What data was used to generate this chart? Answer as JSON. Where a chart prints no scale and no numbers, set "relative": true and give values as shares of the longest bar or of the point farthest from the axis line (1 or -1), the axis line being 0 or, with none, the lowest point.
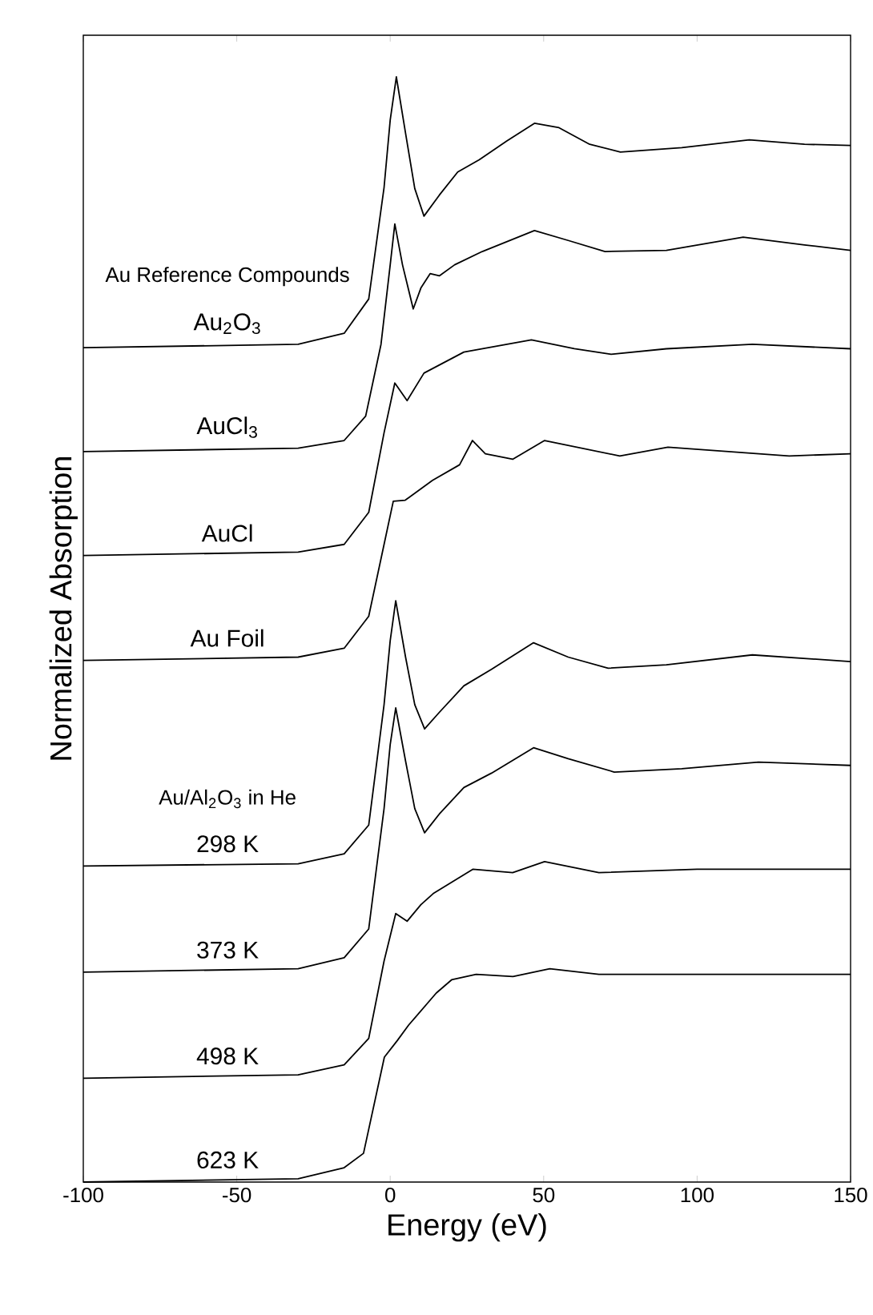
{
  "chart_data": {
    "type": "line",
    "relative": true,
    "xlabel": "Energy (eV)",
    "ylabel": "Normalized Absorption",
    "xlim": [
      -100,
      150
    ],
    "xticks": [
      -100,
      -50,
      0,
      50,
      100,
      150
    ],
    "grid": false,
    "marker": "none",
    "line_style": "solid",
    "annotations": [
      "Au Reference Compounds",
      "Au/Al$_{2}$O$_{3}$ in He"
    ],
    "series": [
      {
        "name": "Au$_{2}$O$_{3}$",
        "color": "#000000",
        "x": [
          -100,
          -30,
          -15,
          -7,
          -2,
          0,
          2,
          5,
          8,
          11,
          16,
          22,
          29,
          38,
          47,
          55,
          65,
          75,
          95,
          117,
          135,
          150
        ],
        "values": [
          0.755,
          0.758,
          0.768,
          0.799,
          0.9,
          0.961,
          1.0,
          0.949,
          0.899,
          0.874,
          0.893,
          0.914,
          0.925,
          0.942,
          0.958,
          0.954,
          0.939,
          0.932,
          0.936,
          0.943,
          0.939,
          0.938
        ]
      },
      {
        "name": "AuCl$_{3}$",
        "color": "#000000",
        "x": [
          -100,
          -30,
          -15,
          -8,
          -3,
          0,
          1.5,
          4,
          7.5,
          10,
          13,
          16,
          21,
          30,
          47,
          58,
          70,
          90,
          115,
          135,
          150
        ],
        "values": [
          0.661,
          0.664,
          0.671,
          0.693,
          0.758,
          0.83,
          0.867,
          0.83,
          0.79,
          0.809,
          0.822,
          0.82,
          0.83,
          0.842,
          0.861,
          0.852,
          0.842,
          0.843,
          0.855,
          0.848,
          0.843
        ]
      },
      {
        "name": "AuCl",
        "color": "#000000",
        "x": [
          -100,
          -30,
          -15,
          -7,
          -2,
          1.5,
          5.5,
          11,
          24,
          46,
          60,
          72,
          90,
          118,
          150
        ],
        "values": [
          0.567,
          0.57,
          0.577,
          0.606,
          0.678,
          0.723,
          0.707,
          0.732,
          0.751,
          0.762,
          0.754,
          0.749,
          0.754,
          0.758,
          0.754
        ]
      },
      {
        "name": "Au Foil",
        "color": "#000000",
        "x": [
          -100,
          -30,
          -15,
          -7,
          -2,
          1,
          4.9,
          13.8,
          22.6,
          26.8,
          31,
          39.9,
          50.3,
          74.8,
          90.5,
          130,
          150
        ],
        "values": [
          0.472,
          0.475,
          0.483,
          0.512,
          0.577,
          0.616,
          0.617,
          0.635,
          0.649,
          0.671,
          0.659,
          0.654,
          0.671,
          0.657,
          0.665,
          0.657,
          0.659
        ]
      },
      {
        "name": "298 K",
        "color": "#000000",
        "x": [
          -100,
          -30,
          -15,
          -7,
          -2,
          0,
          1.8,
          5,
          8,
          11.2,
          16,
          24,
          33,
          46.7,
          58,
          71,
          90,
          118,
          150
        ],
        "values": [
          0.286,
          0.288,
          0.297,
          0.323,
          0.432,
          0.49,
          0.526,
          0.475,
          0.432,
          0.41,
          0.425,
          0.449,
          0.464,
          0.488,
          0.475,
          0.465,
          0.468,
          0.477,
          0.471
        ]
      },
      {
        "name": "373 K",
        "color": "#000000",
        "x": [
          -100,
          -30,
          -15,
          -7,
          -2,
          0,
          1.8,
          5,
          8,
          11.2,
          16,
          24,
          33,
          46.7,
          58,
          73,
          95,
          120,
          150
        ],
        "values": [
          0.19,
          0.193,
          0.203,
          0.229,
          0.338,
          0.396,
          0.429,
          0.381,
          0.338,
          0.316,
          0.333,
          0.357,
          0.37,
          0.393,
          0.383,
          0.371,
          0.374,
          0.38,
          0.377
        ]
      },
      {
        "name": "498 K",
        "color": "#000000",
        "x": [
          -100,
          -30,
          -15,
          -7,
          -2,
          1.8,
          5.5,
          10,
          14,
          26.9,
          39.9,
          50.3,
          68,
          100,
          150
        ],
        "values": [
          0.094,
          0.097,
          0.106,
          0.13,
          0.2,
          0.243,
          0.236,
          0.251,
          0.261,
          0.283,
          0.28,
          0.29,
          0.28,
          0.283,
          0.283
        ]
      },
      {
        "name": "623 K",
        "color": "#000000",
        "x": [
          -100,
          -30,
          -15,
          -8.7,
          -1.9,
          2.3,
          6,
          15,
          20,
          28,
          40,
          52,
          68,
          150
        ],
        "values": [
          0.0,
          0.003,
          0.013,
          0.026,
          0.113,
          0.128,
          0.142,
          0.171,
          0.183,
          0.188,
          0.186,
          0.193,
          0.188,
          0.188
        ]
      }
    ]
  }
}
